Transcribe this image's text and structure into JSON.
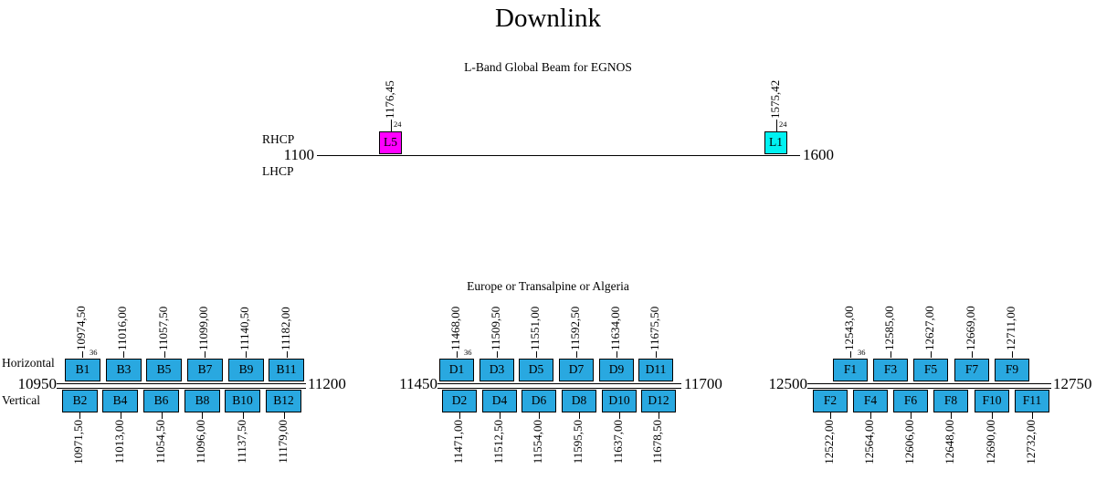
{
  "title": "Downlink",
  "colors": {
    "channel_blue": "#29A8E0",
    "l5_magenta": "#FF00FF",
    "l1_cyan": "#00F2F2",
    "outline": "#000000"
  },
  "lband": {
    "subtitle": "L-Band Global Beam for EGNOS",
    "rhcp_label": "RHCP",
    "lhcp_label": "LHCP",
    "axis_min": 1100,
    "axis_max": 1600,
    "axis_min_label": "1100",
    "axis_max_label": "1600",
    "channels": [
      {
        "id": "L5",
        "center_freq_mhz": 1176.45,
        "freq_label": "1176,45",
        "bandwidth_mhz": 24,
        "bandwidth_label": "24",
        "color_key": "l5_magenta"
      },
      {
        "id": "L1",
        "center_freq_mhz": 1575.42,
        "freq_label": "1575,42",
        "bandwidth_mhz": 24,
        "bandwidth_label": "24",
        "color_key": "l1_cyan"
      }
    ]
  },
  "bands": [
    {
      "name": "B",
      "header": "",
      "row_label_top": "Horizontal",
      "row_label_bottom": "Vertical",
      "axis_min": 10950,
      "axis_max": 11200,
      "axis_min_label": "10950",
      "axis_max_label": "11200",
      "bandwidth_mhz": 36,
      "top_row": [
        {
          "id": "B1",
          "center_freq_mhz": 10974.5,
          "freq_label": "10974,50",
          "bandwidth_label": "36"
        },
        {
          "id": "B3",
          "center_freq_mhz": 11016.0,
          "freq_label": "11016,00"
        },
        {
          "id": "B5",
          "center_freq_mhz": 11057.5,
          "freq_label": "11057,50"
        },
        {
          "id": "B7",
          "center_freq_mhz": 11099.0,
          "freq_label": "11099,00"
        },
        {
          "id": "B9",
          "center_freq_mhz": 11140.5,
          "freq_label": "11140,50"
        },
        {
          "id": "B11",
          "center_freq_mhz": 11182.0,
          "freq_label": "11182,00"
        }
      ],
      "bottom_row": [
        {
          "id": "B2",
          "center_freq_mhz": 10971.5,
          "freq_label": "10971,50"
        },
        {
          "id": "B4",
          "center_freq_mhz": 11013.0,
          "freq_label": "11013,00"
        },
        {
          "id": "B6",
          "center_freq_mhz": 11054.5,
          "freq_label": "11054,50"
        },
        {
          "id": "B8",
          "center_freq_mhz": 11096.0,
          "freq_label": "11096,00"
        },
        {
          "id": "B10",
          "center_freq_mhz": 11137.5,
          "freq_label": "11137,50"
        },
        {
          "id": "B12",
          "center_freq_mhz": 11179.0,
          "freq_label": "11179,00"
        }
      ]
    },
    {
      "name": "D",
      "header": "Europe or Transalpine or Algeria",
      "row_label_top": "",
      "row_label_bottom": "",
      "axis_min": 11450,
      "axis_max": 11700,
      "axis_min_label": "11450",
      "axis_max_label": "11700",
      "bandwidth_mhz": 36,
      "top_row": [
        {
          "id": "D1",
          "center_freq_mhz": 11468.0,
          "freq_label": "11468,00",
          "bandwidth_label": "36"
        },
        {
          "id": "D3",
          "center_freq_mhz": 11509.5,
          "freq_label": "11509,50"
        },
        {
          "id": "D5",
          "center_freq_mhz": 11551.0,
          "freq_label": "11551,00"
        },
        {
          "id": "D7",
          "center_freq_mhz": 11592.5,
          "freq_label": "11592,50"
        },
        {
          "id": "D9",
          "center_freq_mhz": 11634.0,
          "freq_label": "11634,00"
        },
        {
          "id": "D11",
          "center_freq_mhz": 11675.5,
          "freq_label": "11675,50"
        }
      ],
      "bottom_row": [
        {
          "id": "D2",
          "center_freq_mhz": 11471.0,
          "freq_label": "11471,00"
        },
        {
          "id": "D4",
          "center_freq_mhz": 11512.5,
          "freq_label": "11512,50"
        },
        {
          "id": "D6",
          "center_freq_mhz": 11554.0,
          "freq_label": "11554,00"
        },
        {
          "id": "D8",
          "center_freq_mhz": 11595.5,
          "freq_label": "11595,50"
        },
        {
          "id": "D10",
          "center_freq_mhz": 11637.0,
          "freq_label": "11637,00"
        },
        {
          "id": "D12",
          "center_freq_mhz": 11678.5,
          "freq_label": "11678,50"
        }
      ]
    },
    {
      "name": "F",
      "header": "",
      "row_label_top": "",
      "row_label_bottom": "",
      "axis_min": 12500,
      "axis_max": 12750,
      "axis_min_label": "12500",
      "axis_max_label": "12750",
      "bandwidth_mhz": 36,
      "top_row": [
        {
          "id": "F1",
          "center_freq_mhz": 12543.0,
          "freq_label": "12543,00",
          "bandwidth_label": "36"
        },
        {
          "id": "F3",
          "center_freq_mhz": 12585.0,
          "freq_label": "12585,00"
        },
        {
          "id": "F5",
          "center_freq_mhz": 12627.0,
          "freq_label": "12627,00"
        },
        {
          "id": "F7",
          "center_freq_mhz": 12669.0,
          "freq_label": "12669,00"
        },
        {
          "id": "F9",
          "center_freq_mhz": 12711.0,
          "freq_label": "12711,00"
        }
      ],
      "bottom_row": [
        {
          "id": "F2",
          "center_freq_mhz": 12522.0,
          "freq_label": "12522,00"
        },
        {
          "id": "F4",
          "center_freq_mhz": 12564.0,
          "freq_label": "12564,00"
        },
        {
          "id": "F6",
          "center_freq_mhz": 12606.0,
          "freq_label": "12606,00"
        },
        {
          "id": "F8",
          "center_freq_mhz": 12648.0,
          "freq_label": "12648,00"
        },
        {
          "id": "F10",
          "center_freq_mhz": 12690.0,
          "freq_label": "12690,00"
        },
        {
          "id": "F11",
          "center_freq_mhz": 12732.0,
          "freq_label": "12732,00"
        }
      ]
    }
  ]
}
